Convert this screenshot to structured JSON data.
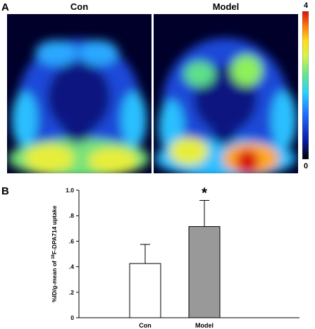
{
  "panel_a": {
    "letter": "A",
    "images": [
      {
        "title": "Con"
      },
      {
        "title": "Model"
      }
    ],
    "colorbar": {
      "max_label": "4",
      "min_label": "0",
      "colors": [
        "#000000",
        "#0a1aa0",
        "#1e6cff",
        "#2ad0ff",
        "#6be68a",
        "#d9f24a",
        "#ffdc1a",
        "#ff7a10",
        "#d81010"
      ]
    }
  },
  "panel_b": {
    "letter": "B"
  },
  "chart_data": {
    "type": "bar",
    "categories": [
      "Con",
      "Model"
    ],
    "values": [
      0.425,
      0.715
    ],
    "errors": [
      0.15,
      0.205
    ],
    "colors": [
      "#ffffff",
      "#999999"
    ],
    "ylabel": "%ID/g-mean of 18F-DPA714 uptake",
    "ylim": [
      0,
      1.0
    ],
    "yticks": [
      "0",
      ".2",
      ".4",
      ".6",
      ".8",
      "1.0"
    ],
    "ytick_values": [
      0,
      0.2,
      0.4,
      0.6,
      0.8,
      1.0
    ],
    "annotations": [
      {
        "category": "Model",
        "text": "*"
      }
    ]
  }
}
